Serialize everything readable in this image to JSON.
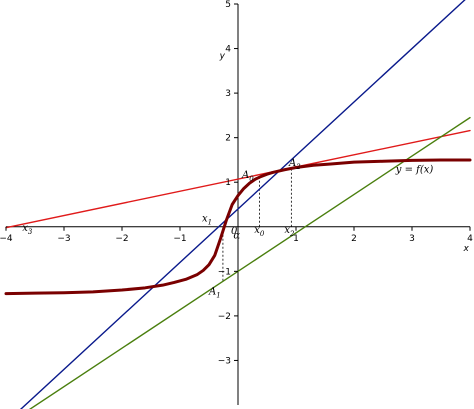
{
  "chart_data": {
    "type": "line",
    "title": "",
    "xlabel": "x",
    "ylabel": "y",
    "xlim": [
      -4,
      4
    ],
    "ylim": [
      -4,
      5
    ],
    "xticks": [
      -4,
      -3,
      -2,
      -1,
      1,
      2,
      3,
      4
    ],
    "yticks": [
      -3,
      -2,
      -1,
      1,
      2,
      3,
      4,
      5
    ],
    "grid": false,
    "curve_label": "y = f(x)",
    "series": [
      {
        "color": "#7a0000",
        "x": [
          -4,
          -3.5,
          -3,
          -2.5,
          -2,
          -1.6,
          -1.3,
          -1.1,
          -0.9,
          -0.7,
          -0.6,
          -0.5,
          -0.4,
          -0.3,
          -0.2,
          -0.1,
          0,
          0.1,
          0.2,
          0.3,
          0.4,
          0.5,
          0.6,
          0.8,
          1,
          1.3,
          1.6,
          2,
          2.5,
          3,
          3.5,
          4
        ],
        "y": [
          -1.5,
          -1.49,
          -1.48,
          -1.46,
          -1.42,
          -1.37,
          -1.31,
          -1.25,
          -1.18,
          -1.07,
          -0.98,
          -0.85,
          -0.64,
          -0.26,
          0.15,
          0.5,
          0.7,
          0.86,
          0.98,
          1.07,
          1.13,
          1.18,
          1.22,
          1.28,
          1.33,
          1.38,
          1.41,
          1.45,
          1.47,
          1.49,
          1.5,
          1.5
        ]
      },
      {
        "color": "#0a1a8c",
        "x": [
          -4,
          4
        ],
        "y": [
          -4.4,
          5.2
        ]
      },
      {
        "color": "#e01a1a",
        "x": [
          -4,
          4
        ],
        "y": [
          -0.02,
          2.16
        ]
      },
      {
        "color": "#4a7f0e",
        "x": [
          -4,
          4
        ],
        "y": [
          -4.45,
          2.45
        ]
      }
    ],
    "dashed_guides": [
      {
        "x": -0.26,
        "y_from": 0,
        "y_to": -1.24
      },
      {
        "x": 0.37,
        "y_from": 0,
        "y_to": 1.18
      },
      {
        "x": 0.92,
        "y_from": 0,
        "y_to": 1.28
      }
    ],
    "annotations": [
      {
        "base": "x",
        "sub": "3",
        "x": -3.72,
        "y": -0.1
      },
      {
        "base": "x",
        "sub": "1",
        "x": -0.62,
        "y": 0.12
      },
      {
        "base": "x",
        "sub": "0",
        "x": 0.28,
        "y": -0.14
      },
      {
        "base": "x",
        "sub": "2",
        "x": 0.8,
        "y": -0.14
      },
      {
        "base": "A",
        "sub": "0",
        "x": 0.07,
        "y": 1.1
      },
      {
        "base": "A",
        "sub": "2",
        "x": 0.88,
        "y": 1.36
      },
      {
        "base": "A",
        "sub": "1",
        "x": -0.5,
        "y": -1.52
      },
      {
        "base": "α",
        "sub": "",
        "x": -0.08,
        "y": -0.26
      },
      {
        "base": "0",
        "sub": "",
        "x": -0.12,
        "y": -0.16
      }
    ]
  }
}
